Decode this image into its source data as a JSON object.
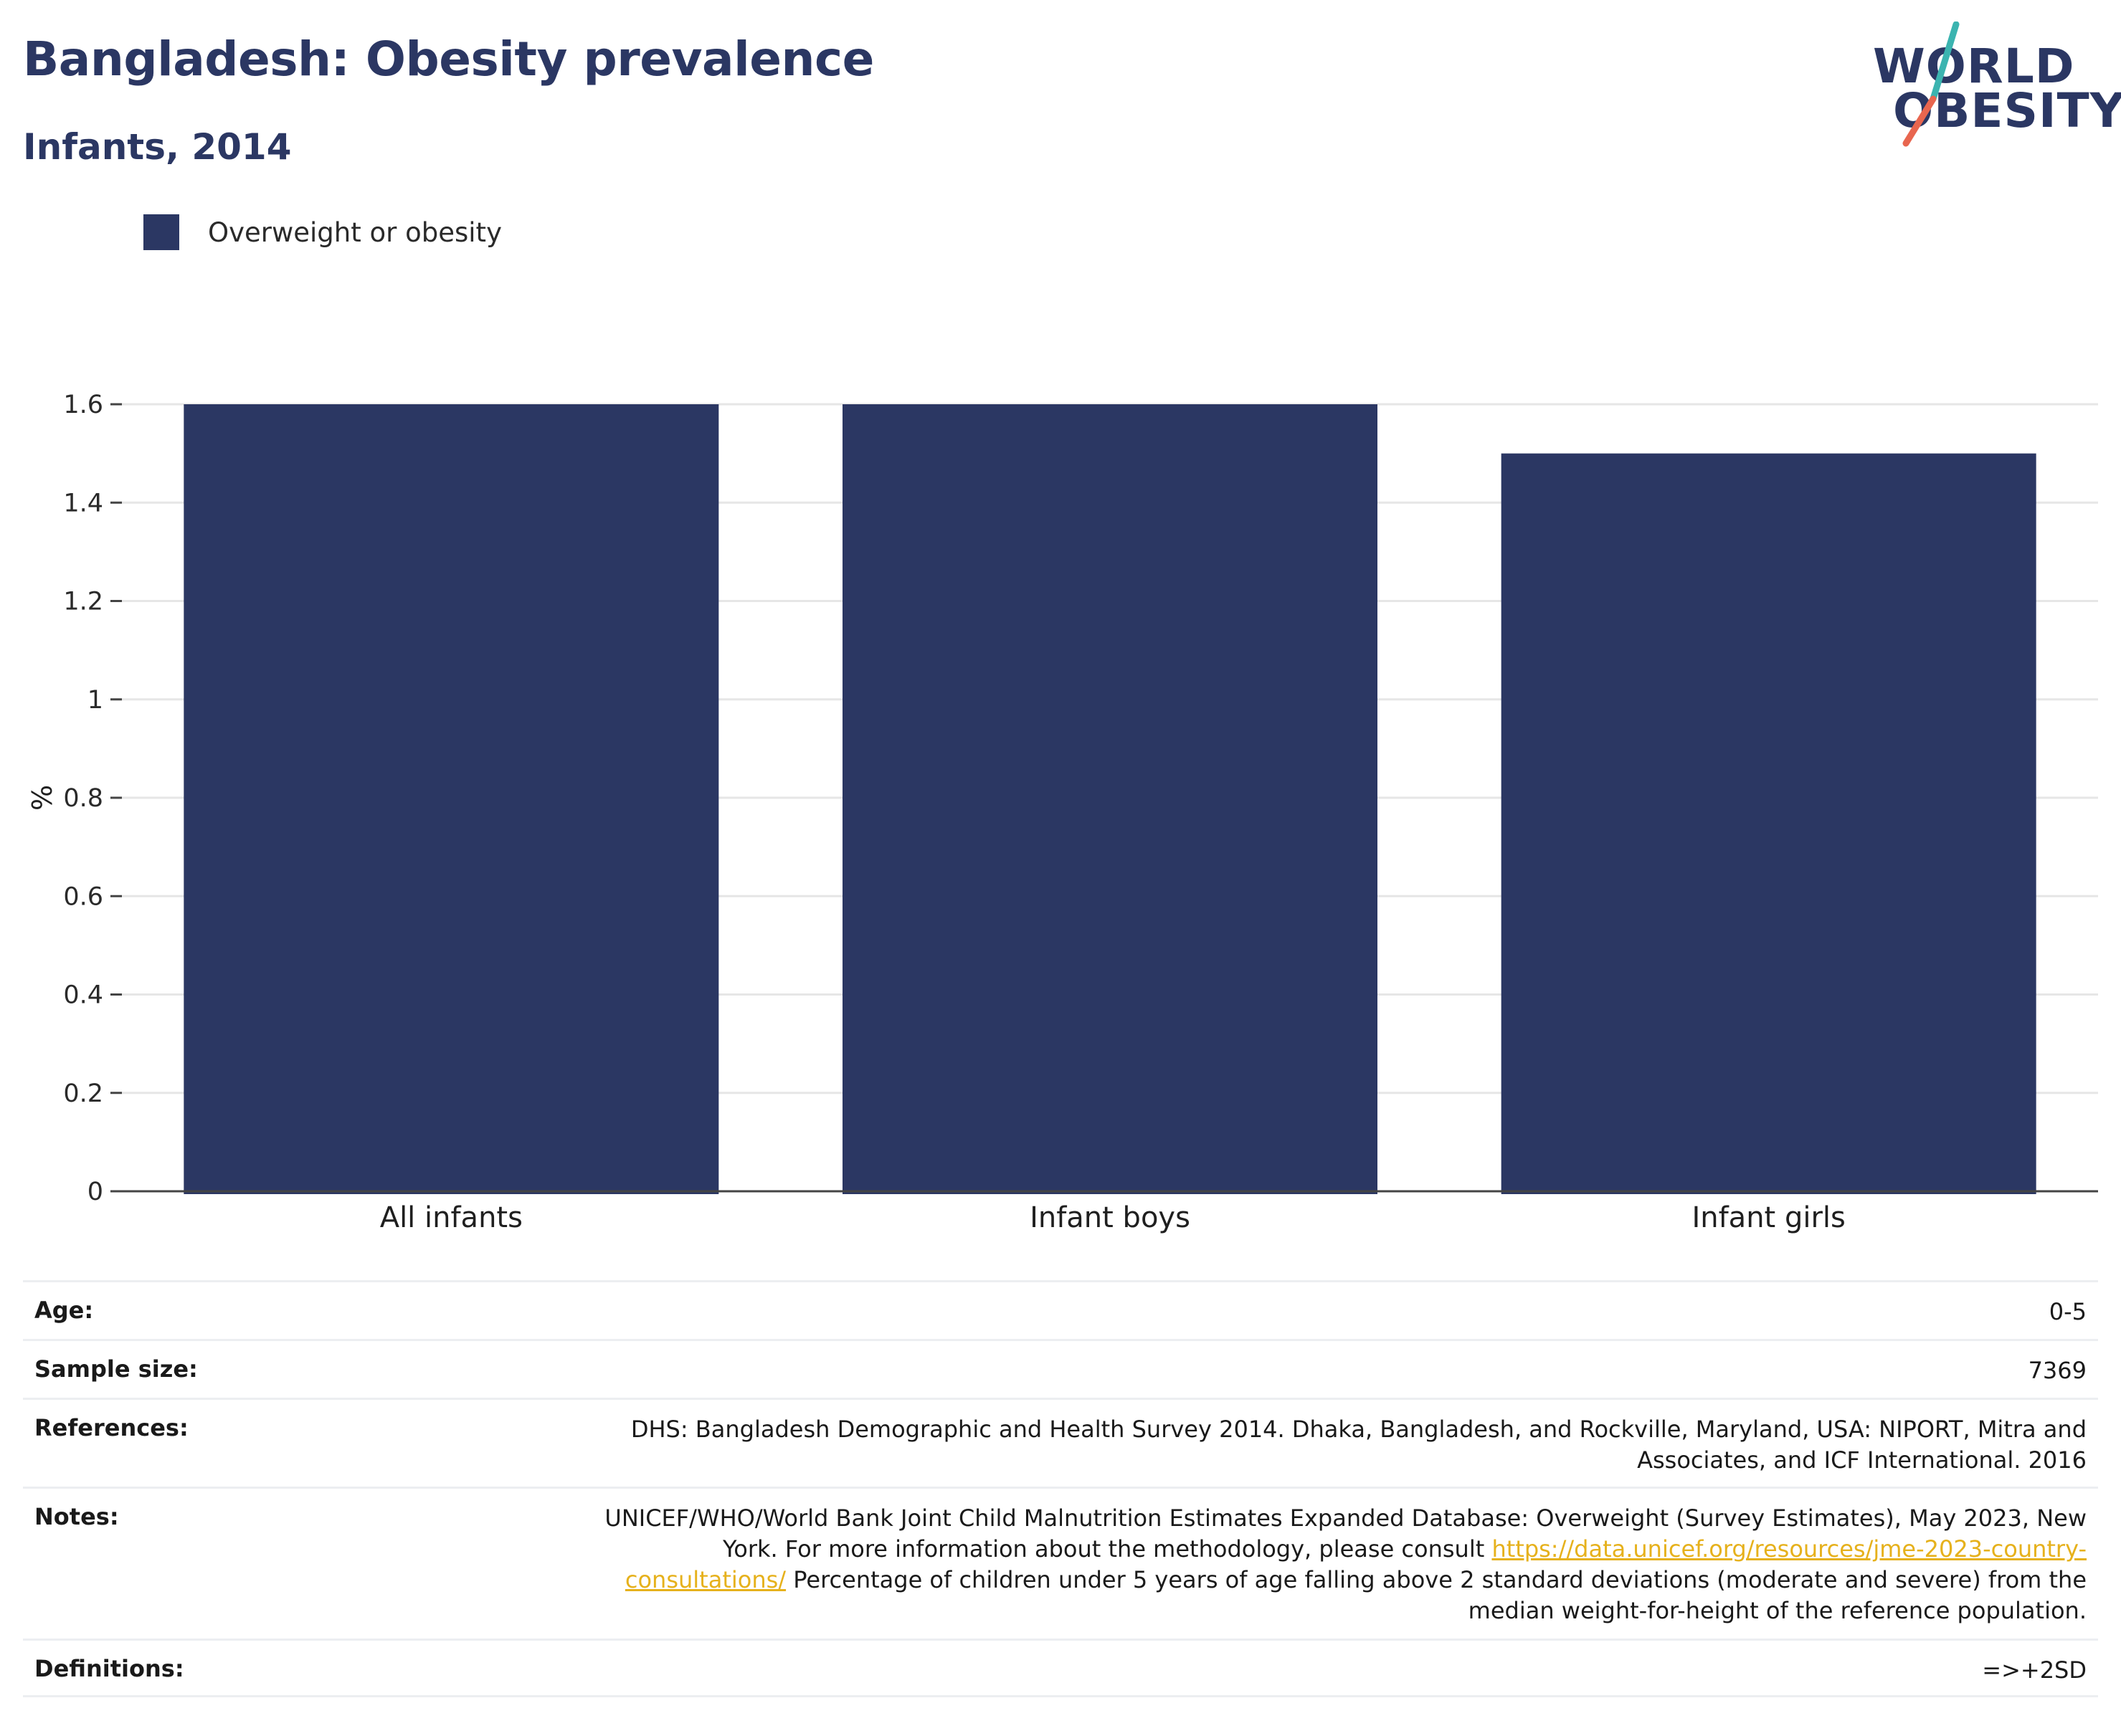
{
  "header": {
    "title": "Bangladesh: Obesity prevalence",
    "subtitle": "Infants, 2014"
  },
  "logo": {
    "line1": "WORLD",
    "line2": "OBESITY",
    "slash_colors": [
      "#3bb4b0",
      "#e8664f"
    ]
  },
  "colors": {
    "bar": "#2b3763",
    "title": "#2b3763",
    "gridline": "#e6e6e6",
    "link": "#e6b11c"
  },
  "chart_data": {
    "type": "bar",
    "categories": [
      "All infants",
      "Infant boys",
      "Infant girls"
    ],
    "series": [
      {
        "name": "Overweight or obesity",
        "values": [
          1.6,
          1.6,
          1.5
        ]
      }
    ],
    "ylabel": "%",
    "xlabel": "",
    "ylim": [
      0,
      1.6
    ],
    "yticks": [
      0,
      0.2,
      0.4,
      0.6,
      0.8,
      1,
      1.2,
      1.4,
      1.6
    ],
    "grid": true,
    "legend": "top-left"
  },
  "meta": [
    {
      "key": "Age:",
      "value": "0-5"
    },
    {
      "key": "Sample size:",
      "value": "7369"
    },
    {
      "key": "References:",
      "value": "DHS: Bangladesh Demographic and Health Survey 2014. Dhaka, Bangladesh, and Rockville, Maryland, USA: NIPORT, Mitra and Associates, and ICF International. 2016"
    },
    {
      "key": "Notes:",
      "value_pre": "UNICEF/WHO/World Bank Joint Child Malnutrition Estimates Expanded Database: Overweight (Survey Estimates), May 2023, New York. For more information about the methodology, please consult ",
      "link": "https://data.unicef.org/resources/jme-2023-country-consultations/",
      "value_post": " Percentage of children under 5 years of age falling above 2 standard deviations (moderate and severe) from the median weight-for-height of the reference population."
    },
    {
      "key": "Definitions:",
      "value": "=>+2SD"
    }
  ]
}
